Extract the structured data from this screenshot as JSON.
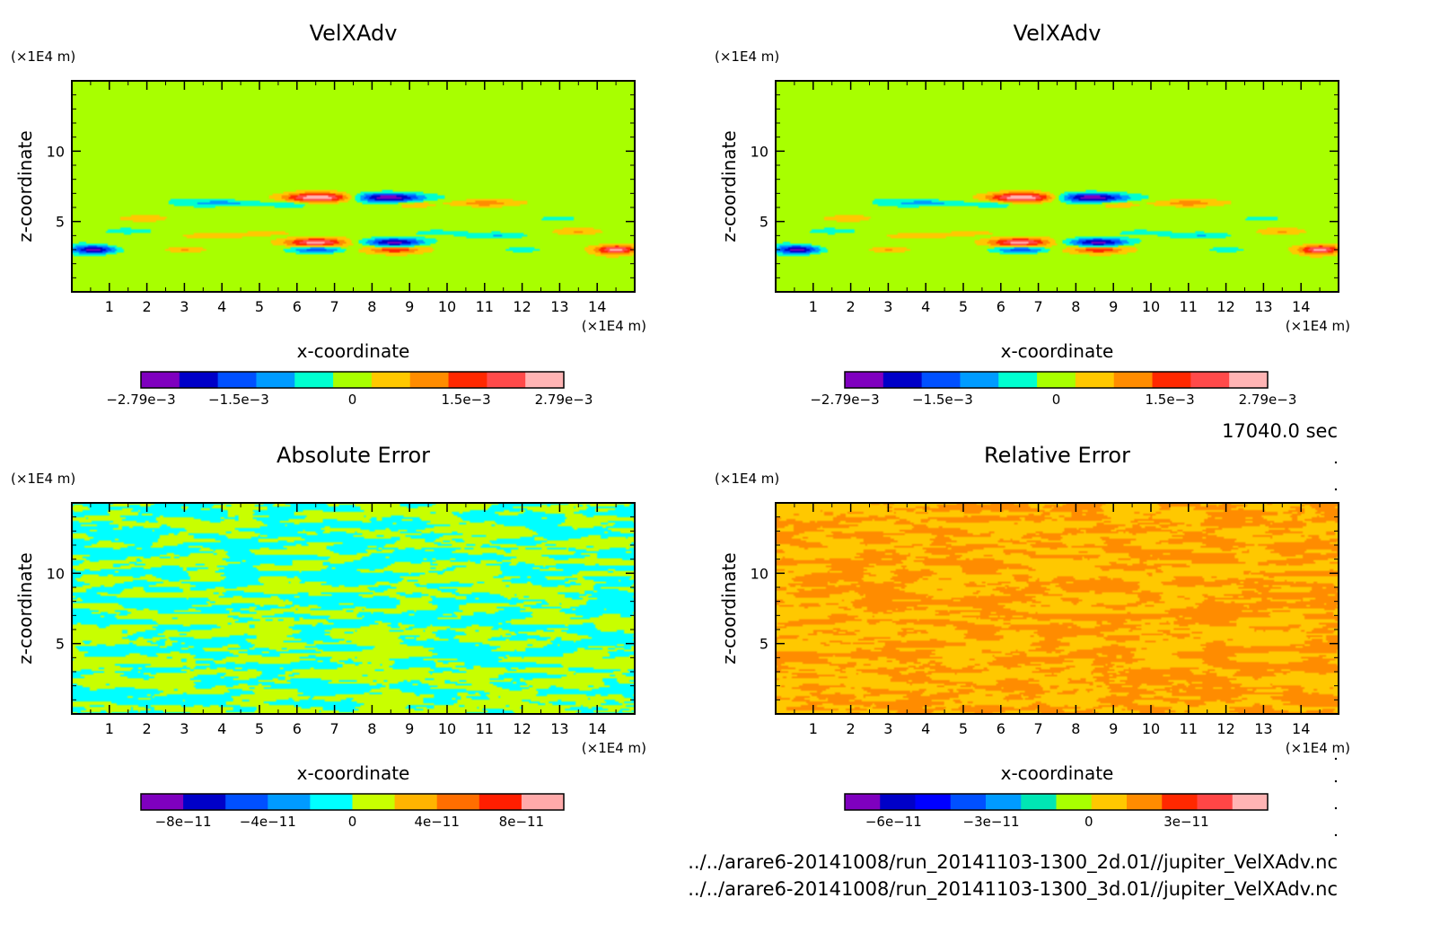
{
  "time_label": "17040.0 sec",
  "files": [
    "../../arare6-20141008/run_20141103-1300_2d.01//jupiter_VelXAdv.nc",
    "../../arare6-20141008/run_20141103-1300_3d.01//jupiter_VelXAdv.nc"
  ],
  "chart_data": [
    {
      "type": "heatmap",
      "title": "VelXAdv",
      "xlabel": "x-coordinate",
      "ylabel": "z-coordinate",
      "x_unit": "(×1E4 m)",
      "y_unit": "(×1E4 m)",
      "xlim": [
        0,
        15
      ],
      "ylim": [
        0,
        15
      ],
      "x_ticks": [
        "1",
        "2",
        "3",
        "4",
        "5",
        "6",
        "7",
        "8",
        "9",
        "10",
        "11",
        "12",
        "13",
        "14"
      ],
      "y_ticks": [
        "5",
        "10"
      ],
      "colorbar": {
        "colors": [
          "#7f00bf",
          "#0000c8",
          "#0050ff",
          "#009bff",
          "#00ffd0",
          "#a8ff00",
          "#ffc800",
          "#ff8c00",
          "#ff2800",
          "#ff4a4a",
          "#ffb4b4"
        ],
        "tick_labels": [
          "−2.79e−3",
          "−1.5e−3",
          "0",
          "1.5e−3",
          "2.79e−3"
        ],
        "tick_values": [
          -0.00279,
          -0.0015,
          0,
          0.0015,
          0.00279
        ],
        "range": [
          -0.00279,
          0.00279
        ]
      },
      "pattern": "velocity",
      "grid": false
    },
    {
      "type": "heatmap",
      "title": "VelXAdv",
      "xlabel": "x-coordinate",
      "ylabel": "z-coordinate",
      "x_unit": "(×1E4 m)",
      "y_unit": "(×1E4 m)",
      "xlim": [
        0,
        15
      ],
      "ylim": [
        0,
        15
      ],
      "x_ticks": [
        "1",
        "2",
        "3",
        "4",
        "5",
        "6",
        "7",
        "8",
        "9",
        "10",
        "11",
        "12",
        "13",
        "14"
      ],
      "y_ticks": [
        "5",
        "10"
      ],
      "colorbar": {
        "colors": [
          "#7f00bf",
          "#0000c8",
          "#0050ff",
          "#009bff",
          "#00ffd0",
          "#a8ff00",
          "#ffc800",
          "#ff8c00",
          "#ff2800",
          "#ff4a4a",
          "#ffb4b4"
        ],
        "tick_labels": [
          "−2.79e−3",
          "−1.5e−3",
          "0",
          "1.5e−3",
          "2.79e−3"
        ],
        "tick_values": [
          -0.00279,
          -0.0015,
          0,
          0.0015,
          0.00279
        ],
        "range": [
          -0.00279,
          0.00279
        ]
      },
      "pattern": "velocity",
      "grid": false
    },
    {
      "type": "heatmap",
      "title": "Absolute Error",
      "xlabel": "x-coordinate",
      "ylabel": "z-coordinate",
      "x_unit": "(×1E4 m)",
      "y_unit": "(×1E4 m)",
      "xlim": [
        0,
        15
      ],
      "ylim": [
        0,
        15
      ],
      "x_ticks": [
        "1",
        "2",
        "3",
        "4",
        "5",
        "6",
        "7",
        "8",
        "9",
        "10",
        "11",
        "12",
        "13",
        "14"
      ],
      "y_ticks": [
        "5",
        "10"
      ],
      "colorbar": {
        "colors": [
          "#7f00bf",
          "#0000c8",
          "#0050ff",
          "#009bff",
          "#00ffff",
          "#c8ff00",
          "#ffb400",
          "#ff6e00",
          "#ff1e00",
          "#ffaaaa"
        ],
        "tick_labels": [
          "−8e−11",
          "−4e−11",
          "0",
          "4e−11",
          "8e−11"
        ],
        "tick_values": [
          -8e-11,
          -4e-11,
          0,
          4e-11,
          8e-11
        ],
        "range": [
          -1e-10,
          1e-10
        ]
      },
      "pattern": "noise2",
      "field_colors": [
        "#00ffff",
        "#c8ff00"
      ],
      "grid": false
    },
    {
      "type": "heatmap",
      "title": "Relative Error",
      "xlabel": "x-coordinate",
      "ylabel": "z-coordinate",
      "x_unit": "(×1E4 m)",
      "y_unit": "(×1E4 m)",
      "xlim": [
        0,
        15
      ],
      "ylim": [
        0,
        15
      ],
      "x_ticks": [
        "1",
        "2",
        "3",
        "4",
        "5",
        "6",
        "7",
        "8",
        "9",
        "10",
        "11",
        "12",
        "13",
        "14"
      ],
      "y_ticks": [
        "5",
        "10"
      ],
      "colorbar": {
        "colors": [
          "#7f00bf",
          "#0000c8",
          "#0000ff",
          "#0050ff",
          "#009bff",
          "#00e6b4",
          "#a8ff00",
          "#ffc800",
          "#ff8c00",
          "#ff2800",
          "#ff4646",
          "#ffb4b4"
        ],
        "tick_labels": [
          "−6e−11",
          "−3e−11",
          "0",
          "3e−11"
        ],
        "tick_values": [
          -6e-11,
          -3e-11,
          0,
          3e-11
        ],
        "range": [
          -7.5e-11,
          5.5e-11
        ]
      },
      "pattern": "noise2",
      "field_colors": [
        "#ff8c00",
        "#ffc800"
      ],
      "grid": false
    }
  ]
}
